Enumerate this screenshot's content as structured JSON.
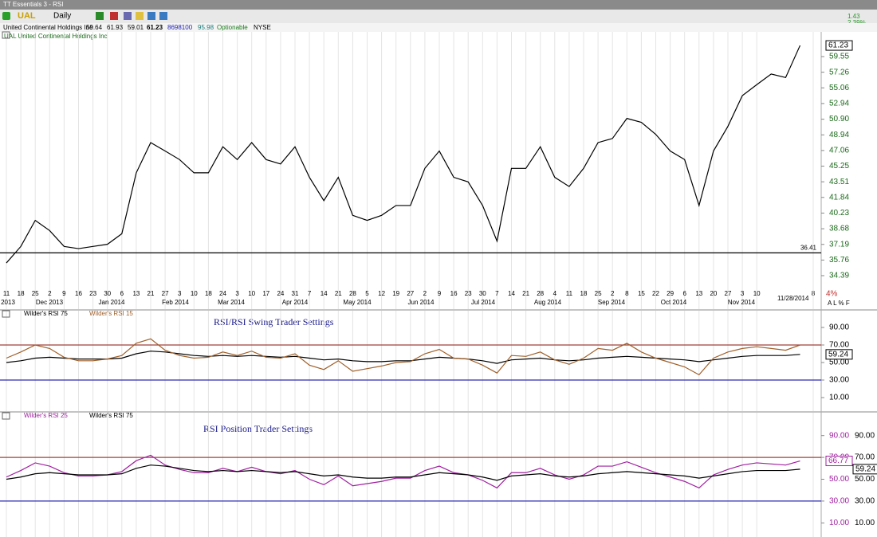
{
  "window": {
    "title": "TT Essentials 3 - RSI"
  },
  "toolbar": {
    "symbol": "UAL",
    "period": "Daily",
    "change": "1.43",
    "change_pct": "2.39%",
    "zoom": "4%",
    "scale_buttons": "A L % F"
  },
  "quote": {
    "name": "United Continental Holdings Inc",
    "open": 59.64,
    "high": 61.93,
    "low": 59.01,
    "close": 61.23,
    "volume": 8698100,
    "other": 95.98,
    "flag": "Optionable",
    "exchange": "NYSE"
  },
  "xaxis": {
    "days": [
      "11",
      "18",
      "25",
      "2",
      "9",
      "16",
      "23",
      "30",
      "6",
      "13",
      "21",
      "27",
      "3",
      "10",
      "18",
      "24",
      "3",
      "10",
      "17",
      "24",
      "31",
      "7",
      "14",
      "21",
      "28",
      "5",
      "12",
      "19",
      "27",
      "2",
      "9",
      "16",
      "23",
      "30",
      "7",
      "14",
      "21",
      "28",
      "4",
      "11",
      "18",
      "25",
      "2",
      "8",
      "15",
      "22",
      "29",
      "6",
      "13",
      "20",
      "27",
      "3",
      "10"
    ],
    "months": [
      "2013",
      "Dec 2013",
      "Jan 2014",
      "Feb 2014",
      "Mar 2014",
      "Apr 2014",
      "May 2014",
      "Jun 2014",
      "Jul 2014",
      "Aug 2014",
      "Sep 2014",
      "Oct 2014",
      "Nov 2014"
    ],
    "date": "11/28/2014",
    "next": "8"
  },
  "chart_data": [
    {
      "type": "line",
      "title": "UAL United Continental Holdings Inc",
      "log_scale": true,
      "ylim": [
        33.44,
        63.1
      ],
      "yticks": [
        59.55,
        57.26,
        55.06,
        52.94,
        {
          "value": 50.9,
          "label": "50.90"
        },
        48.94,
        47.06,
        45.25,
        43.51,
        41.84,
        40.23,
        38.68,
        37.19,
        35.76,
        34.39
      ],
      "hlines": [
        {
          "value": 36.41,
          "color": "#000000"
        }
      ],
      "color": "#000000",
      "values": [
        35.5,
        37,
        39.5,
        38.5,
        37,
        36.8,
        37,
        37.2,
        38.2,
        44.5,
        48,
        47,
        46,
        44.5,
        44.5,
        47.5,
        46,
        48,
        46,
        45.5,
        47.5,
        44,
        41.5,
        44,
        40,
        39.5,
        40,
        41,
        41,
        45,
        47,
        44,
        43.5,
        41,
        37.5,
        45,
        45,
        47.5,
        44,
        43,
        45,
        48,
        48.5,
        51,
        50.5,
        49,
        47,
        46,
        41,
        47,
        50,
        54,
        55.5,
        57,
        56.5,
        61.23
      ]
    },
    {
      "type": "line",
      "annotation": "RSI/RSI Swing Trader Settings",
      "ylim": [
        0,
        100
      ],
      "yticks": [
        {
          "value": 90,
          "label": "90.00"
        },
        {
          "value": 70,
          "label": "70.00"
        },
        {
          "value": 50,
          "label": "50.00"
        },
        {
          "value": 30,
          "label": "30.00"
        },
        {
          "value": 10,
          "label": "10.00"
        }
      ],
      "hlines": [
        {
          "value": 70,
          "color": "#a0403a"
        },
        {
          "value": 30,
          "color": "#2a2ab0"
        }
      ],
      "series": [
        {
          "name": "Wilder's RSI 75",
          "color": "#000000",
          "values": [
            50,
            52,
            55,
            56,
            55,
            54,
            54,
            54,
            55,
            60,
            63,
            62,
            60,
            58,
            57,
            58,
            57,
            58,
            57,
            56,
            57,
            55,
            53,
            54,
            52,
            51,
            51,
            52,
            52,
            54,
            56,
            55,
            54,
            52,
            49,
            53,
            54,
            55,
            53,
            52,
            53,
            55,
            56,
            57,
            56,
            55,
            54,
            53,
            51,
            53,
            55,
            57,
            58,
            58,
            58,
            59.24
          ]
        },
        {
          "name": "Wilder's RSI 15",
          "color": "#a0602a",
          "values": [
            55,
            62,
            70,
            66,
            56,
            52,
            52,
            54,
            58,
            72,
            77,
            64,
            58,
            55,
            56,
            62,
            58,
            63,
            56,
            55,
            60,
            47,
            42,
            52,
            40,
            43,
            46,
            50,
            51,
            60,
            65,
            55,
            54,
            47,
            38,
            58,
            57,
            62,
            53,
            48,
            55,
            66,
            64,
            72,
            62,
            55,
            50,
            45,
            36,
            55,
            62,
            66,
            68,
            66,
            64,
            70
          ]
        }
      ]
    },
    {
      "type": "line",
      "annotation": "RSI Position Trader Settings",
      "ylim": [
        0,
        100
      ],
      "yticks": [
        {
          "value": 90,
          "label": "90.00"
        },
        {
          "value": 70,
          "label": "70.00"
        },
        {
          "value": 50,
          "label": "50.00"
        },
        {
          "value": 30,
          "label": "30.00"
        },
        {
          "value": 10,
          "label": "10.00"
        }
      ],
      "hlines": [
        {
          "value": 70,
          "color": "#a0403a"
        },
        {
          "value": 30,
          "color": "#2a2ab0"
        }
      ],
      "series": [
        {
          "name": "Wilder's RSI 25",
          "color": "#a020a0",
          "values": [
            52,
            58,
            65,
            62,
            56,
            53,
            53,
            54,
            57,
            67,
            72,
            63,
            59,
            56,
            56,
            60,
            57,
            61,
            57,
            55,
            58,
            50,
            45,
            53,
            44,
            46,
            48,
            51,
            51,
            58,
            62,
            56,
            54,
            49,
            42,
            56,
            56,
            60,
            54,
            50,
            54,
            62,
            62,
            66,
            61,
            56,
            52,
            48,
            42,
            54,
            59,
            63,
            65,
            64,
            63,
            66.77
          ]
        },
        {
          "name": "Wilder's RSI 75",
          "color": "#000000",
          "values": [
            50,
            52,
            55,
            56,
            55,
            54,
            54,
            54,
            55,
            60,
            63,
            62,
            60,
            58,
            57,
            58,
            57,
            58,
            57,
            56,
            57,
            55,
            53,
            54,
            52,
            51,
            51,
            52,
            52,
            54,
            56,
            55,
            54,
            52,
            49,
            53,
            54,
            55,
            53,
            52,
            53,
            55,
            56,
            57,
            56,
            55,
            54,
            53,
            51,
            53,
            55,
            57,
            58,
            58,
            58,
            59.24
          ]
        }
      ]
    }
  ]
}
